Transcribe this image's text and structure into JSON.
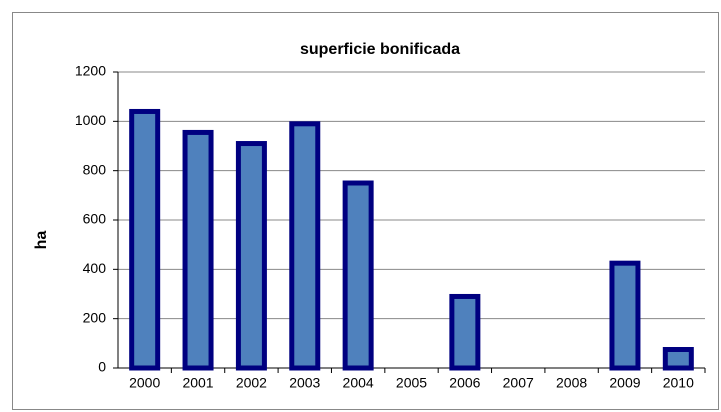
{
  "chart_data": {
    "type": "bar",
    "title": "superficie bonificada",
    "y_label": "ha",
    "categories": [
      "2000",
      "2001",
      "2002",
      "2003",
      "2004",
      "2005",
      "2006",
      "2007",
      "2008",
      "2009",
      "2010"
    ],
    "values": [
      1040,
      955,
      910,
      990,
      750,
      0,
      290,
      0,
      0,
      425,
      75
    ],
    "color": "#4f81bd",
    "border_color": "#000080",
    "ylim": [
      0,
      1200
    ],
    "yticks": [
      0,
      200,
      400,
      600,
      800,
      1000,
      1200
    ],
    "grid": true
  }
}
